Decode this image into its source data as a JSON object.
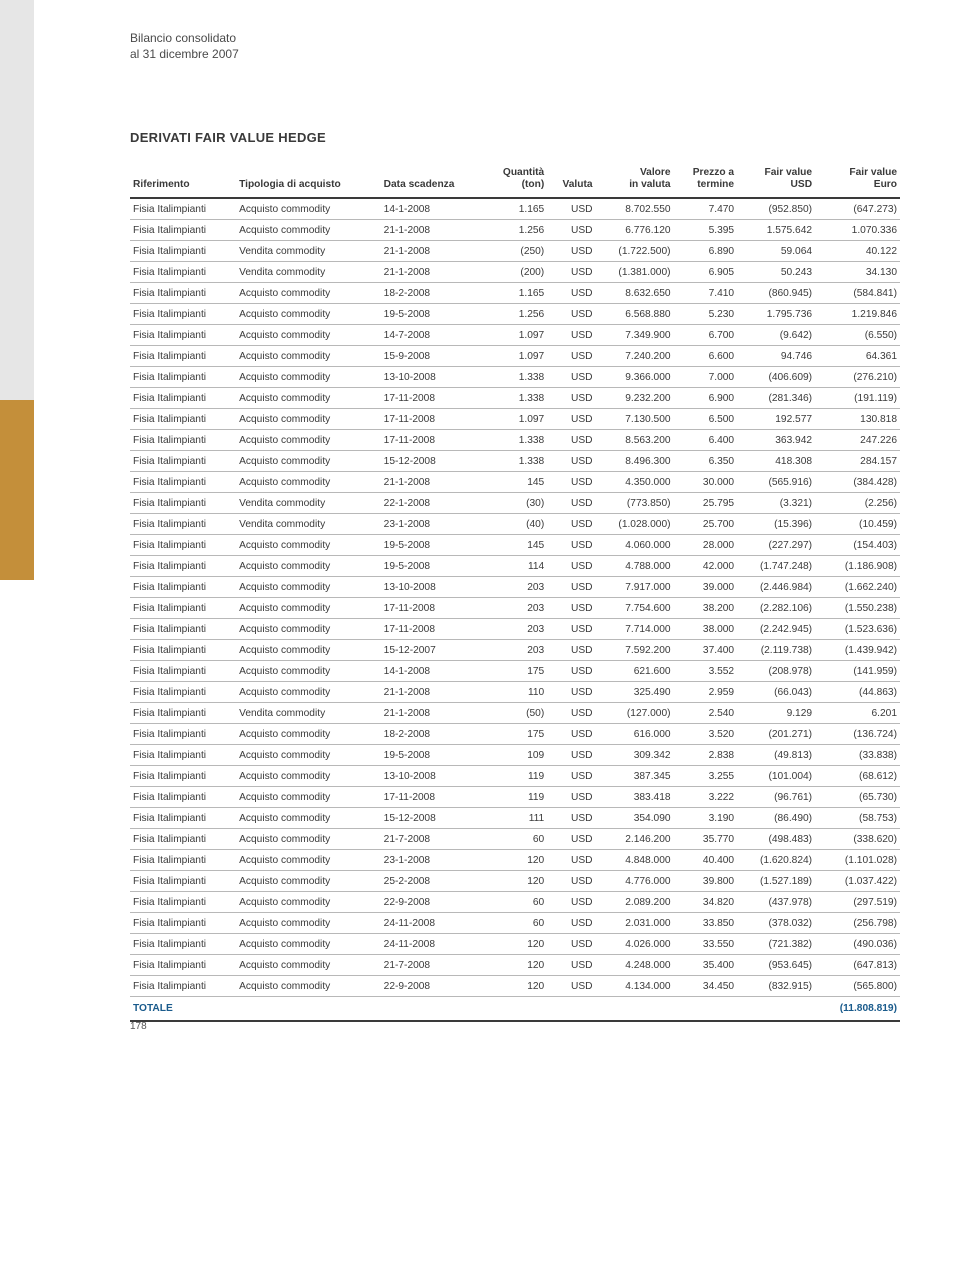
{
  "header_line1": "Bilancio consolidato",
  "header_line2": "al 31 dicembre 2007",
  "section_title": "DERIVATI FAIR VALUE HEDGE",
  "page_number": "178",
  "columns": [
    {
      "l1": "",
      "l2": "Riferimento"
    },
    {
      "l1": "",
      "l2": "Tipologia di acquisto"
    },
    {
      "l1": "",
      "l2": "Data scadenza"
    },
    {
      "l1": "Quantità",
      "l2": "(ton)"
    },
    {
      "l1": "",
      "l2": "Valuta"
    },
    {
      "l1": "Valore",
      "l2": "in valuta"
    },
    {
      "l1": "Prezzo a",
      "l2": "termine"
    },
    {
      "l1": "Fair value",
      "l2": "USD"
    },
    {
      "l1": "Fair value",
      "l2": "Euro"
    }
  ],
  "rows": [
    [
      "Fisia Italimpianti",
      "Acquisto commodity",
      "14-1-2008",
      "1.165",
      "USD",
      "8.702.550",
      "7.470",
      "(952.850)",
      "(647.273)"
    ],
    [
      "Fisia Italimpianti",
      "Acquisto commodity",
      "21-1-2008",
      "1.256",
      "USD",
      "6.776.120",
      "5.395",
      "1.575.642",
      "1.070.336"
    ],
    [
      "Fisia Italimpianti",
      "Vendita commodity",
      "21-1-2008",
      "(250)",
      "USD",
      "(1.722.500)",
      "6.890",
      "59.064",
      "40.122"
    ],
    [
      "Fisia Italimpianti",
      "Vendita commodity",
      "21-1-2008",
      "(200)",
      "USD",
      "(1.381.000)",
      "6.905",
      "50.243",
      "34.130"
    ],
    [
      "Fisia Italimpianti",
      "Acquisto commodity",
      "18-2-2008",
      "1.165",
      "USD",
      "8.632.650",
      "7.410",
      "(860.945)",
      "(584.841)"
    ],
    [
      "Fisia Italimpianti",
      "Acquisto commodity",
      "19-5-2008",
      "1.256",
      "USD",
      "6.568.880",
      "5.230",
      "1.795.736",
      "1.219.846"
    ],
    [
      "Fisia Italimpianti",
      "Acquisto commodity",
      "14-7-2008",
      "1.097",
      "USD",
      "7.349.900",
      "6.700",
      "(9.642)",
      "(6.550)"
    ],
    [
      "Fisia Italimpianti",
      "Acquisto commodity",
      "15-9-2008",
      "1.097",
      "USD",
      "7.240.200",
      "6.600",
      "94.746",
      "64.361"
    ],
    [
      "Fisia Italimpianti",
      "Acquisto commodity",
      "13-10-2008",
      "1.338",
      "USD",
      "9.366.000",
      "7.000",
      "(406.609)",
      "(276.210)"
    ],
    [
      "Fisia Italimpianti",
      "Acquisto commodity",
      "17-11-2008",
      "1.338",
      "USD",
      "9.232.200",
      "6.900",
      "(281.346)",
      "(191.119)"
    ],
    [
      "Fisia Italimpianti",
      "Acquisto commodity",
      "17-11-2008",
      "1.097",
      "USD",
      "7.130.500",
      "6.500",
      "192.577",
      "130.818"
    ],
    [
      "Fisia Italimpianti",
      "Acquisto commodity",
      "17-11-2008",
      "1.338",
      "USD",
      "8.563.200",
      "6.400",
      "363.942",
      "247.226"
    ],
    [
      "Fisia Italimpianti",
      "Acquisto commodity",
      "15-12-2008",
      "1.338",
      "USD",
      "8.496.300",
      "6.350",
      "418.308",
      "284.157"
    ],
    [
      "Fisia Italimpianti",
      "Acquisto commodity",
      "21-1-2008",
      "145",
      "USD",
      "4.350.000",
      "30.000",
      "(565.916)",
      "(384.428)"
    ],
    [
      "Fisia Italimpianti",
      "Vendita commodity",
      "22-1-2008",
      "(30)",
      "USD",
      "(773.850)",
      "25.795",
      "(3.321)",
      "(2.256)"
    ],
    [
      "Fisia Italimpianti",
      "Vendita commodity",
      "23-1-2008",
      "(40)",
      "USD",
      "(1.028.000)",
      "25.700",
      "(15.396)",
      "(10.459)"
    ],
    [
      "Fisia Italimpianti",
      "Acquisto commodity",
      "19-5-2008",
      "145",
      "USD",
      "4.060.000",
      "28.000",
      "(227.297)",
      "(154.403)"
    ],
    [
      "Fisia Italimpianti",
      "Acquisto commodity",
      "19-5-2008",
      "114",
      "USD",
      "4.788.000",
      "42.000",
      "(1.747.248)",
      "(1.186.908)"
    ],
    [
      "Fisia Italimpianti",
      "Acquisto commodity",
      "13-10-2008",
      "203",
      "USD",
      "7.917.000",
      "39.000",
      "(2.446.984)",
      "(1.662.240)"
    ],
    [
      "Fisia Italimpianti",
      "Acquisto commodity",
      "17-11-2008",
      "203",
      "USD",
      "7.754.600",
      "38.200",
      "(2.282.106)",
      "(1.550.238)"
    ],
    [
      "Fisia Italimpianti",
      "Acquisto commodity",
      "17-11-2008",
      "203",
      "USD",
      "7.714.000",
      "38.000",
      "(2.242.945)",
      "(1.523.636)"
    ],
    [
      "Fisia Italimpianti",
      "Acquisto commodity",
      "15-12-2007",
      "203",
      "USD",
      "7.592.200",
      "37.400",
      "(2.119.738)",
      "(1.439.942)"
    ],
    [
      "Fisia Italimpianti",
      "Acquisto commodity",
      "14-1-2008",
      "175",
      "USD",
      "621.600",
      "3.552",
      "(208.978)",
      "(141.959)"
    ],
    [
      "Fisia Italimpianti",
      "Acquisto commodity",
      "21-1-2008",
      "110",
      "USD",
      "325.490",
      "2.959",
      "(66.043)",
      "(44.863)"
    ],
    [
      "Fisia Italimpianti",
      "Vendita commodity",
      "21-1-2008",
      "(50)",
      "USD",
      "(127.000)",
      "2.540",
      "9.129",
      "6.201"
    ],
    [
      "Fisia Italimpianti",
      "Acquisto commodity",
      "18-2-2008",
      "175",
      "USD",
      "616.000",
      "3.520",
      "(201.271)",
      "(136.724)"
    ],
    [
      "Fisia Italimpianti",
      "Acquisto commodity",
      "19-5-2008",
      "109",
      "USD",
      "309.342",
      "2.838",
      "(49.813)",
      "(33.838)"
    ],
    [
      "Fisia Italimpianti",
      "Acquisto commodity",
      "13-10-2008",
      "119",
      "USD",
      "387.345",
      "3.255",
      "(101.004)",
      "(68.612)"
    ],
    [
      "Fisia Italimpianti",
      "Acquisto commodity",
      "17-11-2008",
      "119",
      "USD",
      "383.418",
      "3.222",
      "(96.761)",
      "(65.730)"
    ],
    [
      "Fisia Italimpianti",
      "Acquisto commodity",
      "15-12-2008",
      "111",
      "USD",
      "354.090",
      "3.190",
      "(86.490)",
      "(58.753)"
    ],
    [
      "Fisia Italimpianti",
      "Acquisto commodity",
      "21-7-2008",
      "60",
      "USD",
      "2.146.200",
      "35.770",
      "(498.483)",
      "(338.620)"
    ],
    [
      "Fisia Italimpianti",
      "Acquisto commodity",
      "23-1-2008",
      "120",
      "USD",
      "4.848.000",
      "40.400",
      "(1.620.824)",
      "(1.101.028)"
    ],
    [
      "Fisia Italimpianti",
      "Acquisto commodity",
      "25-2-2008",
      "120",
      "USD",
      "4.776.000",
      "39.800",
      "(1.527.189)",
      "(1.037.422)"
    ],
    [
      "Fisia Italimpianti",
      "Acquisto commodity",
      "22-9-2008",
      "60",
      "USD",
      "2.089.200",
      "34.820",
      "(437.978)",
      "(297.519)"
    ],
    [
      "Fisia Italimpianti",
      "Acquisto commodity",
      "24-11-2008",
      "60",
      "USD",
      "2.031.000",
      "33.850",
      "(378.032)",
      "(256.798)"
    ],
    [
      "Fisia Italimpianti",
      "Acquisto commodity",
      "24-11-2008",
      "120",
      "USD",
      "4.026.000",
      "33.550",
      "(721.382)",
      "(490.036)"
    ],
    [
      "Fisia Italimpianti",
      "Acquisto commodity",
      "21-7-2008",
      "120",
      "USD",
      "4.248.000",
      "35.400",
      "(953.645)",
      "(647.813)"
    ],
    [
      "Fisia Italimpianti",
      "Acquisto commodity",
      "22-9-2008",
      "120",
      "USD",
      "4.134.000",
      "34.450",
      "(832.915)",
      "(565.800)"
    ]
  ],
  "total_label": "TOTALE",
  "total_value": "(11.808.819)"
}
